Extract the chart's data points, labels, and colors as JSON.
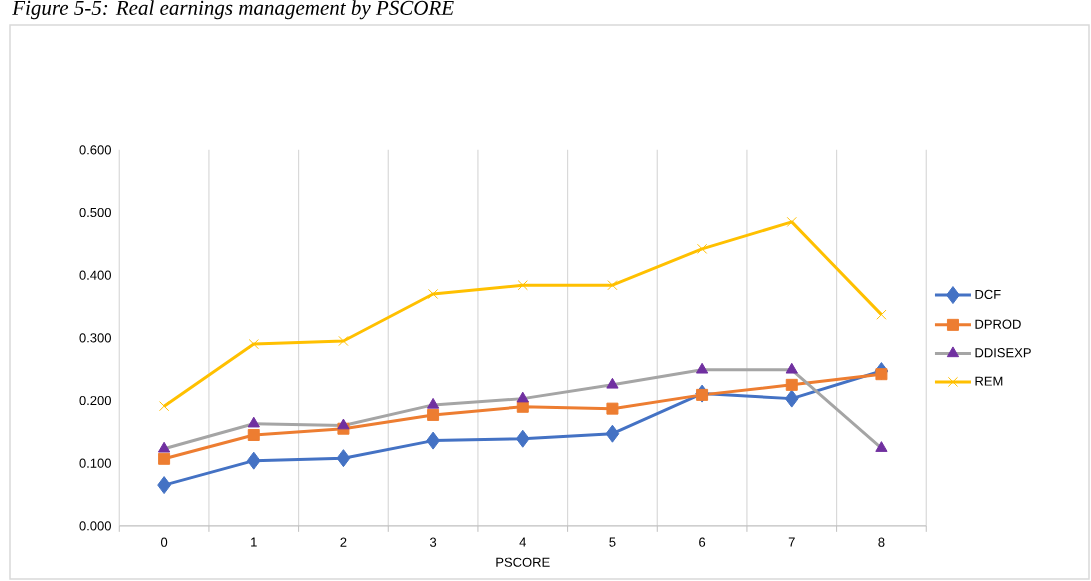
{
  "chart_data": {
    "type": "line",
    "title": "Figure 5-5: Real earnings management by PSCORE",
    "xlabel": "PSCORE",
    "categories": [
      "0",
      "1",
      "2",
      "3",
      "4",
      "5",
      "6",
      "7",
      "8"
    ],
    "series": [
      {
        "name": "DCF",
        "color": "#4472c4",
        "marker": "diamond",
        "values": [
          0.065,
          0.104,
          0.108,
          0.136,
          0.139,
          0.147,
          0.211,
          0.203,
          0.247
        ]
      },
      {
        "name": "DPROD",
        "color": "#ed7d31",
        "marker": "square",
        "values": [
          0.107,
          0.145,
          0.155,
          0.177,
          0.19,
          0.187,
          0.209,
          0.225,
          0.242
        ]
      },
      {
        "name": "DDISEXP",
        "color": "#a5a5a5",
        "colors": [
          "#7030a0",
          "#7030a0",
          "#7030a0",
          "#7030a0",
          "#7030a0",
          "#7030a0",
          "#7030a0",
          "#7030a0",
          "#7030a0"
        ],
        "marker": "triangle",
        "values": [
          0.123,
          0.163,
          0.16,
          0.193,
          0.203,
          0.225,
          0.249,
          0.249,
          0.124
        ]
      },
      {
        "name": "REM",
        "color": "#ffc000",
        "marker": "cross",
        "values": [
          0.191,
          0.29,
          0.295,
          0.37,
          0.384,
          0.384,
          0.442,
          0.485,
          0.337
        ]
      }
    ],
    "ylim": [
      0,
      0.6
    ],
    "yticks": [
      {
        "value": 0,
        "label": "0.000"
      },
      {
        "value": 0.1,
        "label": "0.100"
      },
      {
        "value": 0.2,
        "label": "0.200"
      },
      {
        "value": 0.3,
        "label": "0.300"
      },
      {
        "value": 0.4,
        "label": "0.400"
      },
      {
        "value": 0.5,
        "label": "0.500"
      },
      {
        "value": 0.6,
        "label": "0.600"
      }
    ],
    "grid": "x",
    "legend": "right",
    "line_style": "solid"
  }
}
